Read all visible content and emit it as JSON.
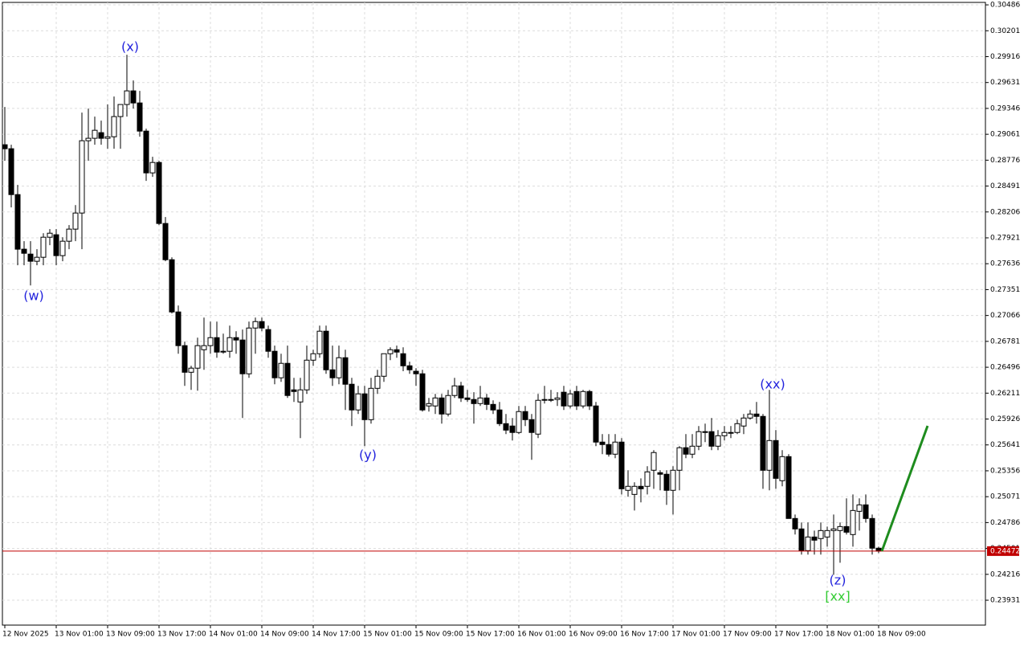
{
  "chart_data": {
    "type": "candlestick",
    "categories": [
      "12 Nov 2025",
      null,
      null,
      null,
      null,
      null,
      null,
      null,
      "13 Nov 01:00",
      null,
      null,
      null,
      null,
      null,
      null,
      null,
      "13 Nov 09:00",
      null,
      null,
      null,
      null,
      null,
      null,
      null,
      "13 Nov 17:00",
      null,
      null,
      null,
      null,
      null,
      null,
      null,
      "14 Nov 01:00",
      null,
      null,
      null,
      null,
      null,
      null,
      null,
      "14 Nov 09:00",
      null,
      null,
      null,
      null,
      null,
      null,
      null,
      "14 Nov 17:00",
      null,
      null,
      null,
      null,
      null,
      null,
      null,
      "15 Nov 01:00",
      null,
      null,
      null,
      null,
      null,
      null,
      null,
      "15 Nov 09:00",
      null,
      null,
      null,
      null,
      null,
      null,
      null,
      "15 Nov 17:00",
      null,
      null,
      null,
      null,
      null,
      null,
      null,
      "16 Nov 01:00",
      null,
      null,
      null,
      null,
      null,
      null,
      null,
      "16 Nov 09:00",
      null,
      null,
      null,
      null,
      null,
      null,
      null,
      "16 Nov 17:00",
      null,
      null,
      null,
      null,
      null,
      null,
      null,
      "17 Nov 01:00",
      null,
      null,
      null,
      null,
      null,
      null,
      null,
      "17 Nov 09:00",
      null,
      null,
      null,
      null,
      null,
      null,
      null,
      "17 Nov 17:00",
      null,
      null,
      null,
      null,
      null,
      null,
      null,
      "18 Nov 01:00",
      null,
      null,
      null,
      null,
      null,
      null,
      null,
      "18 Nov 09:00"
    ],
    "open": [
      0.28946,
      0.28902,
      0.28397,
      0.27796,
      0.27742,
      0.27663,
      0.27707,
      0.27928,
      0.27955,
      0.27725,
      0.27884,
      0.28017,
      0.28194,
      0.2899,
      0.29017,
      0.29079,
      0.29017,
      0.29034,
      0.29256,
      0.29389,
      0.29539,
      0.29406,
      0.29096,
      0.28636,
      0.28751,
      0.28079,
      0.2768,
      0.27105,
      0.26734,
      0.26441,
      0.26486,
      0.26689,
      0.26734,
      0.26822,
      0.26663,
      0.26672,
      0.26822,
      0.26796,
      0.26424,
      0.26928,
      0.26999,
      0.26911,
      0.26672,
      0.2638,
      0.26539,
      0.26247,
      0.26114,
      0.26247,
      0.26574,
      0.26645,
      0.26893,
      0.26468,
      0.2638,
      0.26601,
      0.26309,
      0.26026,
      0.26203,
      0.25919,
      0.26264,
      0.26397,
      0.26645,
      0.26689,
      0.26645,
      0.26512,
      0.26452,
      0.26424,
      0.2607,
      0.2607,
      0.26158,
      0.25981,
      0.26185,
      0.26291,
      0.26158,
      0.26141,
      0.26096,
      0.26158,
      0.26087,
      0.26026,
      0.25875,
      0.25849,
      0.25778,
      0.26008,
      0.25919,
      0.2576,
      0.26141,
      0.26141,
      0.26141,
      0.26221,
      0.2607,
      0.26229,
      0.2607,
      0.26229,
      0.2607,
      0.25672,
      0.25645,
      0.25539,
      0.25672,
      0.25141,
      0.25096,
      0.25185,
      0.25185,
      0.25362,
      0.25335,
      0.25318,
      0.25141,
      0.25362,
      0.2561,
      0.25539,
      0.25627,
      0.25787,
      0.25787,
      0.25627,
      0.25742,
      0.25778,
      0.25778,
      0.25849,
      0.25937,
      0.25981,
      0.25955,
      0.25362,
      0.25689,
      0.25247,
      0.25512,
      0.24831,
      0.24716,
      0.24477,
      0.24627,
      0.2461,
      0.24627,
      0.24698,
      0.24698,
      0.24742,
      0.24654,
      0.2491,
      0.24981,
      0.24831,
      0.24504
    ],
    "high": [
      0.29362,
      0.28946,
      0.28504,
      0.27884,
      0.27884,
      0.27796,
      0.27972,
      0.28017,
      0.28017,
      0.27928,
      0.28061,
      0.28282,
      0.293,
      0.29344,
      0.29256,
      0.29212,
      0.29389,
      0.29477,
      0.29389,
      0.29937,
      0.29654,
      0.29539,
      0.29123,
      0.28813,
      0.28769,
      0.2815,
      0.27707,
      0.27176,
      0.26778,
      0.26512,
      0.26822,
      0.27043,
      0.26999,
      0.26999,
      0.26866,
      0.26955,
      0.26893,
      0.26911,
      0.26999,
      0.27043,
      0.27043,
      0.26955,
      0.26734,
      0.26645,
      0.26734,
      0.2638,
      0.2638,
      0.26734,
      0.26689,
      0.26955,
      0.26955,
      0.26734,
      0.26734,
      0.26689,
      0.2638,
      0.26291,
      0.26291,
      0.2638,
      0.26468,
      0.26645,
      0.26716,
      0.26734,
      0.26716,
      0.26557,
      0.26486,
      0.26468,
      0.26158,
      0.26203,
      0.26203,
      0.26247,
      0.2638,
      0.26335,
      0.26247,
      0.26221,
      0.26291,
      0.26203,
      0.26132,
      0.26114,
      0.25981,
      0.25937,
      0.2607,
      0.2607,
      0.25981,
      0.26203,
      0.26291,
      0.26247,
      0.26221,
      0.26291,
      0.26247,
      0.26291,
      0.26247,
      0.26247,
      0.26114,
      0.2576,
      0.2576,
      0.2576,
      0.25716,
      0.25362,
      0.25229,
      0.25273,
      0.25406,
      0.25583,
      0.25362,
      0.25362,
      0.25406,
      0.25627,
      0.2576,
      0.2576,
      0.25849,
      0.25875,
      0.25937,
      0.25804,
      0.25849,
      0.25849,
      0.25919,
      0.25981,
      0.26026,
      0.26114,
      0.25981,
      0.26247,
      0.25804,
      0.25583,
      0.25539,
      0.24875,
      0.24787,
      0.24787,
      0.24698,
      0.24787,
      0.24742,
      0.24875,
      0.24787,
      0.25052,
      0.25096,
      0.25052,
      0.25096,
      0.24875,
      0.24521
    ],
    "low": [
      0.28769,
      0.28256,
      0.27619,
      0.27619,
      0.27397,
      0.27619,
      0.27619,
      0.2784,
      0.27619,
      0.27663,
      0.27796,
      0.27884,
      0.27796,
      0.28769,
      0.28946,
      0.28946,
      0.28902,
      0.28902,
      0.28902,
      0.29256,
      0.29344,
      0.29034,
      0.28548,
      0.28592,
      0.28061,
      0.27663,
      0.27088,
      0.26645,
      0.26291,
      0.26247,
      0.26238,
      0.26468,
      0.26645,
      0.26601,
      0.26645,
      0.26601,
      0.26645,
      0.25937,
      0.2638,
      0.26645,
      0.26893,
      0.26601,
      0.26309,
      0.26335,
      0.26158,
      0.26114,
      0.25716,
      0.26203,
      0.26512,
      0.26601,
      0.26424,
      0.26291,
      0.26309,
      0.26026,
      0.25849,
      0.25981,
      0.25627,
      0.25875,
      0.26203,
      0.26335,
      0.26574,
      0.26601,
      0.26452,
      0.26424,
      0.26291,
      0.26008,
      0.26008,
      0.25981,
      0.25875,
      0.25955,
      0.26158,
      0.26114,
      0.26114,
      0.25875,
      0.2607,
      0.26026,
      0.25981,
      0.25849,
      0.2576,
      0.25689,
      0.2576,
      0.25849,
      0.25477,
      0.25716,
      0.26096,
      0.26114,
      0.2607,
      0.26026,
      0.26043,
      0.26026,
      0.26043,
      0.26026,
      0.25627,
      0.25539,
      0.25512,
      0.25495,
      0.25096,
      0.2507,
      0.24919,
      0.25008,
      0.25096,
      0.25158,
      0.25141,
      0.24981,
      0.24875,
      0.25141,
      0.25495,
      0.25495,
      0.25583,
      0.25672,
      0.25583,
      0.25583,
      0.25689,
      0.25716,
      0.2576,
      0.2576,
      0.25919,
      0.25875,
      0.25158,
      0.25141,
      0.25158,
      0.25185,
      0.24831,
      0.24654,
      0.24433,
      0.24433,
      0.24433,
      0.24433,
      0.24521,
      0.24211,
      0.24344,
      0.24654,
      0.24521,
      0.24698,
      0.24787,
      0.24433,
      0.2445
    ],
    "close": [
      0.28902,
      0.28397,
      0.27796,
      0.27751,
      0.27663,
      0.27707,
      0.27928,
      0.27972,
      0.27725,
      0.27884,
      0.28017,
      0.28194,
      0.2899,
      0.29017,
      0.29105,
      0.29017,
      0.29034,
      0.29256,
      0.29389,
      0.29539,
      0.29406,
      0.29096,
      0.28636,
      0.28751,
      0.28079,
      0.2768,
      0.27105,
      0.26734,
      0.26441,
      0.26486,
      0.26734,
      0.26734,
      0.26822,
      0.26663,
      0.26672,
      0.26822,
      0.26796,
      0.26424,
      0.26928,
      0.26999,
      0.26928,
      0.26672,
      0.2638,
      0.26539,
      0.26185,
      0.26229,
      0.26247,
      0.26574,
      0.26645,
      0.26893,
      0.26468,
      0.2638,
      0.26601,
      0.26309,
      0.26026,
      0.26203,
      0.25919,
      0.26264,
      0.26397,
      0.26645,
      0.26689,
      0.26663,
      0.26512,
      0.26468,
      0.26424,
      0.26026,
      0.26096,
      0.26158,
      0.25981,
      0.26185,
      0.26291,
      0.26158,
      0.26141,
      0.26096,
      0.26158,
      0.26087,
      0.26026,
      0.25875,
      0.25804,
      0.25778,
      0.26008,
      0.25919,
      0.25778,
      0.26132,
      0.26141,
      0.26141,
      0.26158,
      0.2607,
      0.26203,
      0.2607,
      0.26229,
      0.2607,
      0.25672,
      0.25645,
      0.25539,
      0.25672,
      0.25158,
      0.25185,
      0.25185,
      0.25158,
      0.25344,
      0.25557,
      0.25318,
      0.25141,
      0.25362,
      0.2561,
      0.25539,
      0.25627,
      0.25787,
      0.25787,
      0.25627,
      0.25742,
      0.25778,
      0.25778,
      0.25875,
      0.25937,
      0.25981,
      0.25955,
      0.25362,
      0.25689,
      0.25273,
      0.25512,
      0.24831,
      0.24716,
      0.24477,
      0.24627,
      0.24592,
      0.24698,
      0.24698,
      0.24716,
      0.24742,
      0.2468,
      0.24919,
      0.24981,
      0.24831,
      0.24504,
      0.24472
    ],
    "up_color": "#ffffff",
    "down_color": "#000000",
    "ylim": [
      0.23657,
      0.30513
    ],
    "yticks": [
      0.30486,
      0.30201,
      0.29916,
      0.29631,
      0.29346,
      0.29061,
      0.28776,
      0.28491,
      0.28206,
      0.27921,
      0.27636,
      0.27351,
      0.27066,
      0.26781,
      0.26496,
      0.26211,
      0.25926,
      0.25641,
      0.25356,
      0.25071,
      0.24786,
      0.24501,
      0.24216,
      0.23931
    ],
    "grid": true,
    "last_price": 0.24472,
    "last_price_color": "#c00000",
    "annotations": [
      {
        "text": "(w)",
        "color": "#2222dd"
      },
      {
        "text": "(x)",
        "color": "#2222dd"
      },
      {
        "text": "(y)",
        "color": "#2222dd"
      },
      {
        "text": "(xx)",
        "color": "#2222dd"
      },
      {
        "text": "(z)",
        "color": "#2222dd"
      },
      {
        "text": "[xx]",
        "color": "#33cc33"
      }
    ]
  }
}
